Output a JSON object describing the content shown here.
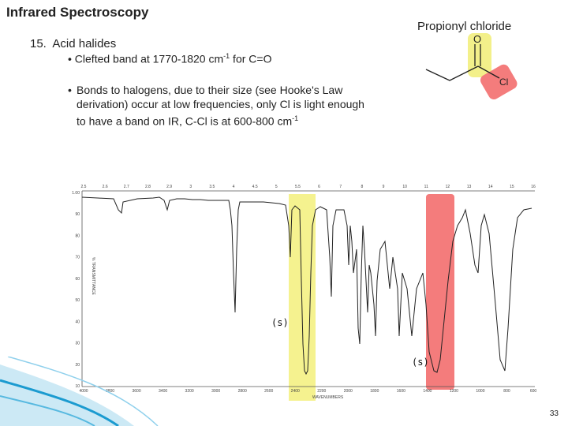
{
  "slide": {
    "title": "Infrared Spectroscopy",
    "heading_number": "15.",
    "heading_text": "Acid halides",
    "bullet1_text": "Clefted band at 1770-1820 cm",
    "bullet1_sup": "-1",
    "bullet1_tail": " for C=O",
    "bullet2_text": "Bonds to halogens, due to their size (see Hooke's Law derivation) occur at low frequencies, only Cl is light enough to have a band on IR, C-Cl is at 600-800 cm",
    "bullet2_sup": "-1",
    "bullet_char": "•",
    "page_number": "33"
  },
  "molecule": {
    "name": "Propionyl chloride",
    "atom_o": "O",
    "atom_cl": "Cl",
    "highlight_co_color": "#f3f08a",
    "highlight_ccl_color": "#f47c7c"
  },
  "spectrum": {
    "top_axis_labels": [
      "2.5",
      "2.6",
      "2.7",
      "2.8",
      "2.9",
      "3",
      "3.5",
      "4",
      "4.5",
      "5",
      "5.5",
      "6",
      "7",
      "8",
      "9",
      "10",
      "11",
      "12",
      "13",
      "14",
      "15",
      "16"
    ],
    "bottom_axis_labels": [
      "4000",
      "3800",
      "3600",
      "3400",
      "3200",
      "3000",
      "2800",
      "2600",
      "2400",
      "2200",
      "2000",
      "1800",
      "1600",
      "1400",
      "1200",
      "1000",
      "800",
      "600"
    ],
    "left_axis_labels": [
      "1.00",
      "90",
      "80",
      "70",
      "60",
      "50",
      "40",
      "30",
      "20",
      "10"
    ],
    "y_axis_title": "% TRANSMITTANCE",
    "x_axis_title": "WAVENUMBERS",
    "band_label_co": "(s)",
    "band_label_ccl": "(s)",
    "highlight_co_color": "#f5f28f",
    "highlight_ccl_color": "#f47c7c"
  },
  "decor": {
    "swirl_color": "#1b9bd0"
  }
}
